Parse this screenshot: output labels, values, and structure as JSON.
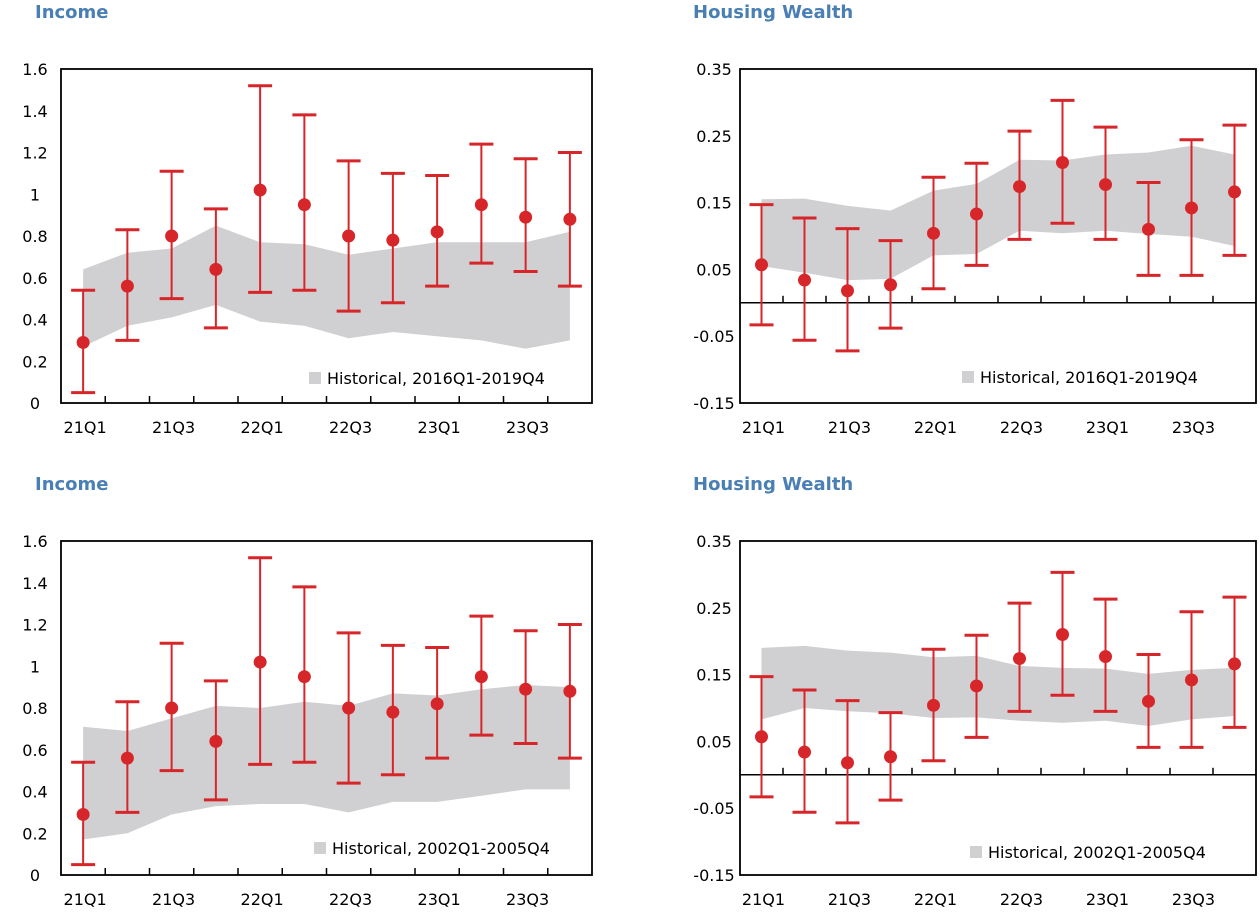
{
  "colors": {
    "band": "#d0cfd1",
    "marker": "#d7262a",
    "title": "#4a7fb5",
    "axis": "#000000"
  },
  "chart_data": [
    {
      "type": "scatter",
      "title": "Income",
      "x": [
        "21Q1",
        "21Q2",
        "21Q3",
        "21Q4",
        "22Q1",
        "22Q2",
        "22Q3",
        "22Q4",
        "23Q1",
        "23Q2",
        "23Q3",
        "23Q4"
      ],
      "tick_labels": [
        "21Q1",
        "21Q3",
        "22Q1",
        "22Q3",
        "23Q1",
        "23Q3"
      ],
      "ylim": [
        0,
        1.6
      ],
      "yticks": [
        0,
        0.2,
        0.4,
        0.6,
        0.8,
        1,
        1.2,
        1.4,
        1.6
      ],
      "ytick_labels": [
        "0",
        "0.2",
        "0.4",
        "0.6",
        "0.8",
        "1",
        "1.2",
        "1.4",
        "1.6"
      ],
      "series": [
        {
          "values": [
            0.29,
            0.56,
            0.8,
            0.64,
            1.02,
            0.95,
            0.8,
            0.78,
            0.82,
            0.95,
            0.89,
            0.88
          ],
          "lower": [
            0.05,
            0.3,
            0.5,
            0.36,
            0.53,
            0.54,
            0.44,
            0.48,
            0.56,
            0.67,
            0.63,
            0.56
          ],
          "upper": [
            0.54,
            0.83,
            1.11,
            0.93,
            1.52,
            1.38,
            1.16,
            1.1,
            1.09,
            1.24,
            1.17,
            1.2
          ]
        }
      ],
      "band": {
        "label": "Historical, 2016Q1-2019Q4",
        "upper": [
          0.64,
          0.72,
          0.74,
          0.85,
          0.77,
          0.76,
          0.71,
          0.74,
          0.77,
          0.77,
          0.77,
          0.82
        ],
        "lower": [
          0.27,
          0.37,
          0.41,
          0.47,
          0.39,
          0.37,
          0.31,
          0.34,
          0.32,
          0.3,
          0.26,
          0.3
        ]
      }
    },
    {
      "type": "scatter",
      "title": "Housing Wealth",
      "x": [
        "21Q1",
        "21Q2",
        "21Q3",
        "21Q4",
        "22Q1",
        "22Q2",
        "22Q3",
        "22Q4",
        "23Q1",
        "23Q2",
        "23Q3",
        "23Q4"
      ],
      "tick_labels": [
        "21Q1",
        "21Q3",
        "22Q1",
        "22Q3",
        "23Q1",
        "23Q3"
      ],
      "ylim": [
        -0.15,
        0.35
      ],
      "yticks": [
        -0.15,
        -0.05,
        0.05,
        0.15,
        0.25,
        0.35
      ],
      "ytick_labels": [
        "-0.15",
        "-0.05",
        "0.05",
        "0.15",
        "0.25",
        "0.35"
      ],
      "series": [
        {
          "values": [
            0.057,
            0.034,
            0.018,
            0.027,
            0.104,
            0.133,
            0.174,
            0.21,
            0.177,
            0.11,
            0.142,
            0.166
          ],
          "lower": [
            -0.033,
            -0.056,
            -0.072,
            -0.038,
            0.021,
            0.056,
            0.095,
            0.119,
            0.095,
            0.041,
            0.041,
            0.071
          ],
          "upper": [
            0.147,
            0.127,
            0.111,
            0.093,
            0.188,
            0.209,
            0.257,
            0.303,
            0.263,
            0.18,
            0.244,
            0.266
          ]
        }
      ],
      "band": {
        "label": "Historical, 2016Q1-2019Q4",
        "upper": [
          0.155,
          0.156,
          0.145,
          0.138,
          0.168,
          0.178,
          0.214,
          0.213,
          0.222,
          0.225,
          0.235,
          0.222
        ],
        "lower": [
          0.055,
          0.045,
          0.034,
          0.036,
          0.071,
          0.073,
          0.108,
          0.104,
          0.108,
          0.103,
          0.099,
          0.085
        ]
      }
    },
    {
      "type": "scatter",
      "title": "Income",
      "x": [
        "21Q1",
        "21Q2",
        "21Q3",
        "21Q4",
        "22Q1",
        "22Q2",
        "22Q3",
        "22Q4",
        "23Q1",
        "23Q2",
        "23Q3",
        "23Q4"
      ],
      "tick_labels": [
        "21Q1",
        "21Q3",
        "22Q1",
        "22Q3",
        "23Q1",
        "23Q3"
      ],
      "ylim": [
        0,
        1.6
      ],
      "yticks": [
        0,
        0.2,
        0.4,
        0.6,
        0.8,
        1,
        1.2,
        1.4,
        1.6
      ],
      "ytick_labels": [
        "0",
        "0.2",
        "0.4",
        "0.6",
        "0.8",
        "1",
        "1.2",
        "1.4",
        "1.6"
      ],
      "series": [
        {
          "values": [
            0.29,
            0.56,
            0.8,
            0.64,
            1.02,
            0.95,
            0.8,
            0.78,
            0.82,
            0.95,
            0.89,
            0.88
          ],
          "lower": [
            0.05,
            0.3,
            0.5,
            0.36,
            0.53,
            0.54,
            0.44,
            0.48,
            0.56,
            0.67,
            0.63,
            0.56
          ],
          "upper": [
            0.54,
            0.83,
            1.11,
            0.93,
            1.52,
            1.38,
            1.16,
            1.1,
            1.09,
            1.24,
            1.17,
            1.2
          ]
        }
      ],
      "band": {
        "label": "Historical, 2002Q1-2005Q4",
        "upper": [
          0.71,
          0.69,
          0.75,
          0.81,
          0.8,
          0.83,
          0.81,
          0.87,
          0.86,
          0.89,
          0.91,
          0.9
        ],
        "lower": [
          0.17,
          0.2,
          0.29,
          0.33,
          0.34,
          0.34,
          0.3,
          0.35,
          0.35,
          0.38,
          0.41,
          0.41
        ]
      }
    },
    {
      "type": "scatter",
      "title": "Housing Wealth",
      "x": [
        "21Q1",
        "21Q2",
        "21Q3",
        "21Q4",
        "22Q1",
        "22Q2",
        "22Q3",
        "22Q4",
        "23Q1",
        "23Q2",
        "23Q3",
        "23Q4"
      ],
      "tick_labels": [
        "21Q1",
        "21Q3",
        "22Q1",
        "22Q3",
        "23Q1",
        "23Q3"
      ],
      "ylim": [
        -0.15,
        0.35
      ],
      "yticks": [
        -0.15,
        -0.05,
        0.05,
        0.15,
        0.25,
        0.35
      ],
      "ytick_labels": [
        "-0.15",
        "-0.05",
        "0.05",
        "0.15",
        "0.25",
        "0.35"
      ],
      "series": [
        {
          "values": [
            0.057,
            0.034,
            0.018,
            0.027,
            0.104,
            0.133,
            0.174,
            0.21,
            0.177,
            0.11,
            0.142,
            0.166
          ],
          "lower": [
            -0.033,
            -0.056,
            -0.072,
            -0.038,
            0.021,
            0.056,
            0.095,
            0.119,
            0.095,
            0.041,
            0.041,
            0.071
          ],
          "upper": [
            0.147,
            0.127,
            0.111,
            0.093,
            0.188,
            0.209,
            0.257,
            0.303,
            0.263,
            0.18,
            0.244,
            0.266
          ]
        }
      ],
      "band": {
        "label": "Historical, 2002Q1-2005Q4",
        "upper": [
          0.19,
          0.193,
          0.186,
          0.183,
          0.176,
          0.178,
          0.163,
          0.16,
          0.159,
          0.151,
          0.157,
          0.16
        ],
        "lower": [
          0.083,
          0.1,
          0.095,
          0.092,
          0.085,
          0.086,
          0.081,
          0.078,
          0.081,
          0.073,
          0.083,
          0.088
        ]
      }
    }
  ]
}
